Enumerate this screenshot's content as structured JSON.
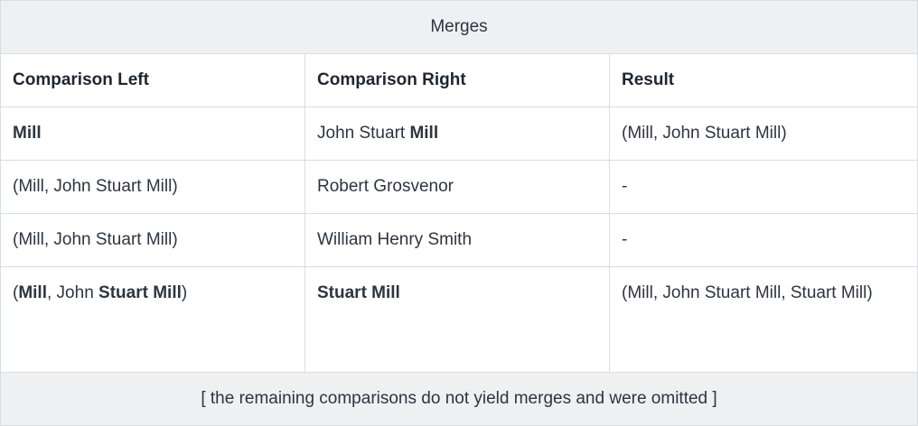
{
  "table": {
    "caption": "Merges",
    "headers": [
      "Comparison Left",
      "Comparison Right",
      "Result"
    ],
    "rows": [
      {
        "left": [
          {
            "text": "Mill",
            "bold": true
          }
        ],
        "right": [
          {
            "text": "John Stuart ",
            "bold": false
          },
          {
            "text": "Mill",
            "bold": true
          }
        ],
        "result": "(Mill, John Stuart Mill)"
      },
      {
        "left": [
          {
            "text": "(Mill, John Stuart Mill)",
            "bold": false
          }
        ],
        "right": [
          {
            "text": "Robert Grosvenor",
            "bold": false
          }
        ],
        "result": "-"
      },
      {
        "left": [
          {
            "text": "(Mill, John Stuart Mill)",
            "bold": false
          }
        ],
        "right": [
          {
            "text": "William Henry Smith",
            "bold": false
          }
        ],
        "result": "-"
      },
      {
        "left": [
          {
            "text": "(",
            "bold": false
          },
          {
            "text": "Mill",
            "bold": true
          },
          {
            "text": ", John ",
            "bold": false
          },
          {
            "text": "Stuart Mill",
            "bold": true
          },
          {
            "text": ")",
            "bold": false
          }
        ],
        "right": [
          {
            "text": "Stuart Mill",
            "bold": true
          }
        ],
        "result": "(Mill, John Stuart Mill, Stuart Mill)"
      }
    ],
    "footer": "[ the remaining comparisons do not yield merges and were omitted ]"
  }
}
